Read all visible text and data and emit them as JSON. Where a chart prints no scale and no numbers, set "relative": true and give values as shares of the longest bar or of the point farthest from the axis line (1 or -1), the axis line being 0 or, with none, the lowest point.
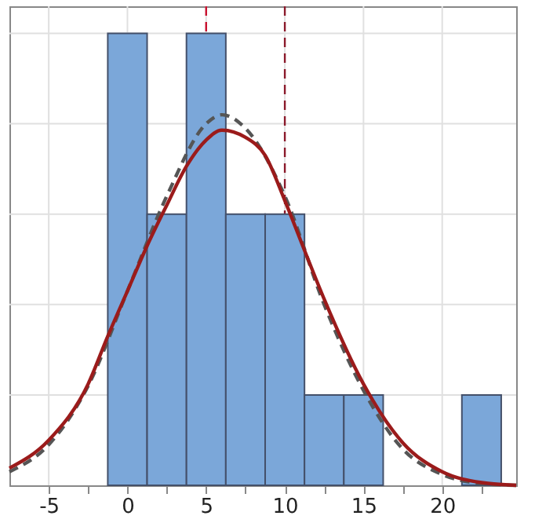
{
  "chart_data": {
    "type": "histogram",
    "relative": true,
    "color": "#7ba7d9",
    "bins": [
      -1.25,
      1.25,
      3.75,
      6.25,
      8.75,
      11.25,
      13.75,
      16.25,
      18.75,
      21.25,
      23.75
    ],
    "values": [
      1,
      0.6,
      1,
      0.6,
      0.6,
      0.2,
      0.2,
      0,
      0,
      0.2
    ],
    "xlim": [
      -7.5,
      24.7
    ],
    "xticks": [
      -5,
      {
        "value": -2.5,
        "label": null
      },
      0,
      {
        "value": 2.5,
        "label": null
      },
      5,
      {
        "value": 7.5,
        "label": null
      },
      10,
      {
        "value": 12.5,
        "label": null
      },
      15,
      {
        "value": 17.5,
        "label": null
      },
      20,
      {
        "value": 22.5,
        "label": null
      }
    ],
    "tick_labels": "x",
    "grid": true,
    "ref_lines": [
      {
        "axis": "x",
        "value": 5,
        "label": null,
        "color": "#c8102e",
        "line_style": "dashed"
      },
      {
        "axis": "x",
        "value": 10,
        "label": null,
        "color": "#8b1a2b",
        "line_style": "dashed"
      }
    ],
    "series": [
      {
        "type": "line",
        "color": "#555555",
        "line_style": "dashed",
        "x": [
          -7.5,
          -5,
          -2.5,
          0,
          2.5,
          5,
          6,
          7.5,
          10,
          12.5,
          15,
          17.5,
          20,
          22.5,
          24.7
        ],
        "values": [
          0.03,
          0.09,
          0.22,
          0.43,
          0.64,
          0.8,
          0.82,
          0.79,
          0.64,
          0.4,
          0.21,
          0.08,
          0.024,
          0.004,
          0
        ]
      },
      {
        "type": "line",
        "color": "#9b1b1b",
        "line_style": "solid",
        "x": [
          -7.5,
          -5,
          -2.5,
          -1.25,
          0,
          1.25,
          2.5,
          3.75,
          5,
          6,
          7.5,
          8.75,
          10,
          11.25,
          12.5,
          15,
          17.5,
          20,
          22.5,
          24.7
        ],
        "values": [
          0.038,
          0.1,
          0.224,
          0.33,
          0.43,
          0.53,
          0.62,
          0.706,
          0.764,
          0.786,
          0.77,
          0.73,
          0.63,
          0.52,
          0.412,
          0.224,
          0.094,
          0.03,
          0.006,
          0
        ]
      }
    ]
  }
}
